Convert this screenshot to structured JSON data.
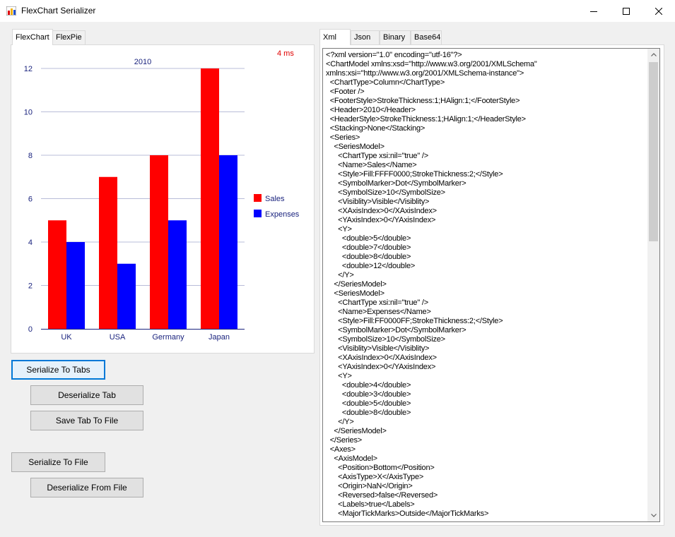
{
  "window": {
    "title": "FlexChart Serializer",
    "icon": "chart-app-icon"
  },
  "left_tabs": [
    {
      "label": "FlexChart",
      "active": true
    },
    {
      "label": "FlexPie",
      "active": false
    }
  ],
  "right_tabs": [
    {
      "label": "Xml",
      "active": true
    },
    {
      "label": "Json",
      "active": false
    },
    {
      "label": "Binary",
      "active": false
    },
    {
      "label": "Base64",
      "active": false
    }
  ],
  "timing": "4 ms",
  "buttons": {
    "serialize_tabs": "Serialize To Tabs",
    "deserialize_tab": "Deserialize Tab",
    "save_tab": "Save Tab To File",
    "serialize_file": "Serialize To File",
    "deserialize_file": "Deserialize From File"
  },
  "chart_data": {
    "type": "bar",
    "title": "2010",
    "categories": [
      "UK",
      "USA",
      "Germany",
      "Japan"
    ],
    "series": [
      {
        "name": "Sales",
        "color": "#ff0000",
        "values": [
          5,
          7,
          8,
          12
        ]
      },
      {
        "name": "Expenses",
        "color": "#0000ff",
        "values": [
          4,
          3,
          5,
          8
        ]
      }
    ],
    "yticks": [
      "0",
      "2",
      "4",
      "6",
      "8",
      "10",
      "12"
    ],
    "ylim": [
      0,
      12
    ],
    "grid": true,
    "legend_position": "right"
  },
  "xml_lines": [
    "<?xml version=\"1.0\" encoding=\"utf-16\"?>",
    "<ChartModel xmlns:xsd=\"http://www.w3.org/2001/XMLSchema\"",
    "xmlns:xsi=\"http://www.w3.org/2001/XMLSchema-instance\">",
    "  <ChartType>Column</ChartType>",
    "  <Footer />",
    "  <FooterStyle>StrokeThickness:1;HAlign:1;</FooterStyle>",
    "  <Header>2010</Header>",
    "  <HeaderStyle>StrokeThickness:1;HAlign:1;</HeaderStyle>",
    "  <Stacking>None</Stacking>",
    "  <Series>",
    "    <SeriesModel>",
    "      <ChartType xsi:nil=\"true\" />",
    "      <Name>Sales</Name>",
    "      <Style>Fill:FFFF0000;StrokeThickness:2;</Style>",
    "      <SymbolMarker>Dot</SymbolMarker>",
    "      <SymbolSize>10</SymbolSize>",
    "      <Visiblity>Visible</Visiblity>",
    "      <XAxisIndex>0</XAxisIndex>",
    "      <YAxisIndex>0</YAxisIndex>",
    "      <Y>",
    "        <double>5</double>",
    "        <double>7</double>",
    "        <double>8</double>",
    "        <double>12</double>",
    "      </Y>",
    "    </SeriesModel>",
    "    <SeriesModel>",
    "      <ChartType xsi:nil=\"true\" />",
    "      <Name>Expenses</Name>",
    "      <Style>Fill:FF0000FF;StrokeThickness:2;</Style>",
    "      <SymbolMarker>Dot</SymbolMarker>",
    "      <SymbolSize>10</SymbolSize>",
    "      <Visiblity>Visible</Visiblity>",
    "      <XAxisIndex>0</XAxisIndex>",
    "      <YAxisIndex>0</YAxisIndex>",
    "      <Y>",
    "        <double>4</double>",
    "        <double>3</double>",
    "        <double>5</double>",
    "        <double>8</double>",
    "      </Y>",
    "    </SeriesModel>",
    "  </Series>",
    "  <Axes>",
    "    <AxisModel>",
    "      <Position>Bottom</Position>",
    "      <AxisType>X</AxisType>",
    "      <Origin>NaN</Origin>",
    "      <Reversed>false</Reversed>",
    "      <Labels>true</Labels>",
    "      <MajorTickMarks>Outside</MajorTickMarks>"
  ]
}
